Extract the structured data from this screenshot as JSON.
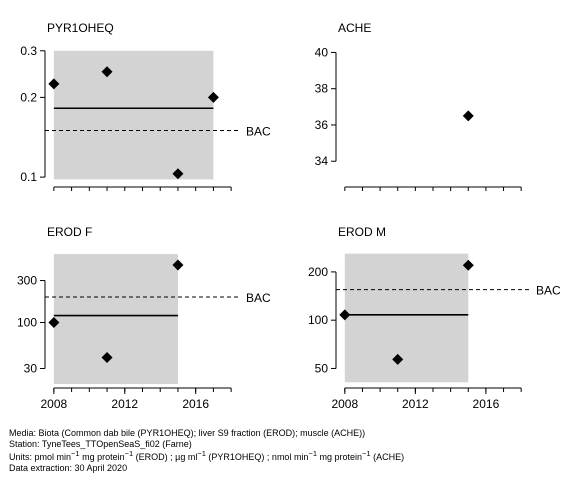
{
  "chart_data": [
    {
      "type": "scatter",
      "title": "PYR1OHEQ",
      "scale": "log",
      "ylim": [
        0.095,
        0.31
      ],
      "yticks": [
        0.1,
        0.2,
        0.3
      ],
      "ytick_labels": [
        "0.1",
        "0.2",
        "0.3"
      ],
      "xlim": [
        2007.5,
        2018.5
      ],
      "shade": {
        "x": [
          2008,
          2017
        ],
        "y": [
          0.098,
          0.3
        ]
      },
      "trend": {
        "x": [
          2008,
          2017
        ],
        "y": [
          0.182,
          0.182
        ]
      },
      "bac": {
        "label": "BAC",
        "value": 0.15
      },
      "points": {
        "x": [
          2008,
          2011,
          2015,
          2017
        ],
        "y": [
          0.225,
          0.25,
          0.103,
          0.2
        ]
      }
    },
    {
      "type": "scatter",
      "title": "ACHE",
      "scale": "linear",
      "ylim": [
        32.8,
        40.3
      ],
      "yticks": [
        34,
        36,
        38,
        40
      ],
      "ytick_labels": [
        "34",
        "36",
        "38",
        "40"
      ],
      "xlim": [
        2007.5,
        2018.5
      ],
      "shade": null,
      "trend": null,
      "bac": null,
      "points": {
        "x": [
          2015
        ],
        "y": [
          36.5
        ]
      }
    },
    {
      "type": "scatter",
      "title": "EROD F",
      "scale": "log",
      "ylim": [
        20,
        650
      ],
      "yticks": [
        30,
        100,
        300
      ],
      "ytick_labels": [
        "30",
        "100",
        "300"
      ],
      "xlim": [
        2007.5,
        2018.5
      ],
      "shade": {
        "x": [
          2008,
          2015
        ],
        "y": [
          20,
          600
        ]
      },
      "trend": {
        "x": [
          2008,
          2015
        ],
        "y": [
          120,
          120
        ]
      },
      "bac": {
        "label": "BAC",
        "value": 195
      },
      "points": {
        "x": [
          2008,
          2011,
          2015
        ],
        "y": [
          100,
          40,
          450
        ]
      }
    },
    {
      "type": "scatter",
      "title": "EROD M",
      "scale": "log",
      "ylim": [
        40,
        270
      ],
      "yticks": [
        50,
        100,
        200
      ],
      "ytick_labels": [
        "50",
        "100",
        "200"
      ],
      "xlim": [
        2007.5,
        2018.5
      ],
      "shade": {
        "x": [
          2008,
          2015
        ],
        "y": [
          41,
          260
        ]
      },
      "trend": {
        "x": [
          2008,
          2015
        ],
        "y": [
          108,
          108
        ]
      },
      "bac": {
        "label": "BAC",
        "value": 155
      },
      "points": {
        "x": [
          2008,
          2011,
          2015
        ],
        "y": [
          108,
          57,
          220
        ]
      }
    }
  ],
  "xaxis": {
    "ticks": [
      2008,
      2012,
      2016
    ],
    "tick_labels": [
      "2008",
      "2012",
      "2016"
    ],
    "minor_ticks": [
      2008,
      2009,
      2010,
      2011,
      2012,
      2013,
      2014,
      2015,
      2016,
      2017,
      2018
    ]
  },
  "colors": {
    "shade": "#d3d3d3",
    "point": "#000000",
    "line": "#000000"
  },
  "footer": {
    "media": "Media: Biota (Common dab bile (PYR1OHEQ); liver S9 fraction (EROD); muscle (ACHE))",
    "station": "Station: TyneTees_TTOpenSeaS_fi02 (Farne)",
    "units_prefix": "Units:  pmol min",
    "units_part2": " mg protein",
    "units_part3": " (EROD) ;  µg ml",
    "units_part4": " (PYR1OHEQ) ;  nmol min",
    "units_part5": " mg protein",
    "units_part6": " (ACHE)",
    "units_sup": "−1",
    "extraction": "Data extraction: 30 April 2020"
  }
}
